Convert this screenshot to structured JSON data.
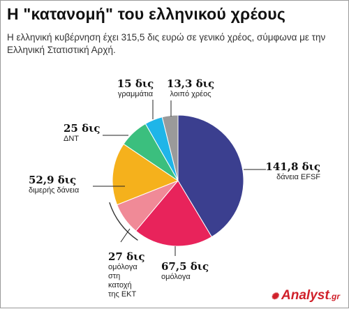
{
  "header": {
    "title": "Η \"κατανομή\" του ελληνικού χρέους",
    "subtitle": "Η ελληνική κυβέρνηση έχει 315,5 δις ευρώ σε γενικό χρέος, σύμφωνα με την Ελληνική Στατιστική Αρχή."
  },
  "chart_data": {
    "type": "pie",
    "total": 315.5,
    "slices": [
      {
        "value": 141.8,
        "value_label": "141,8 δις",
        "desc": [
          "δάνεια EFSF"
        ],
        "color": "#3b3f8f"
      },
      {
        "value": 67.5,
        "value_label": "67,5 δις",
        "desc": [
          "ομόλογα"
        ],
        "color": "#e8235b"
      },
      {
        "value": 27,
        "value_label": "27 δις",
        "desc": [
          "ομόλογα",
          "στη",
          "κατοχή",
          "της ΕΚΤ"
        ],
        "color": "#f08a97"
      },
      {
        "value": 52.9,
        "value_label": "52,9 δις",
        "desc": [
          "διμερής δάνεια"
        ],
        "color": "#f5b11c"
      },
      {
        "value": 25,
        "value_label": "25 δις",
        "desc": [
          "ΔΝΤ"
        ],
        "color": "#3bbf7e"
      },
      {
        "value": 15,
        "value_label": "15 δις",
        "desc": [
          "γραμμάτια"
        ],
        "color": "#1fb5e8"
      },
      {
        "value": 13.3,
        "value_label": "13,3 δις",
        "desc": [
          "λοιπό χρέος"
        ],
        "color": "#9a9a9a"
      }
    ]
  },
  "branding": {
    "logo_name": "Analyst",
    "logo_tld": ".gr",
    "logo_color": "#d0202a"
  }
}
